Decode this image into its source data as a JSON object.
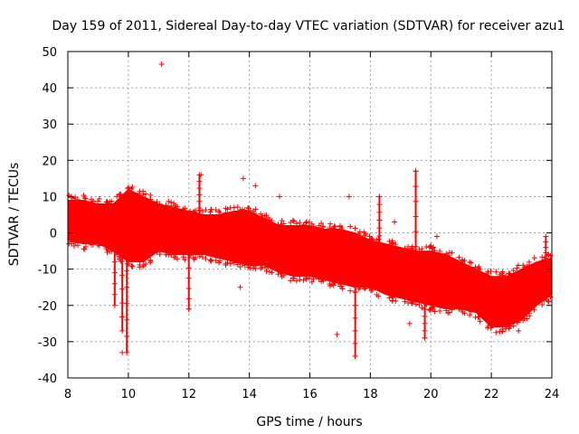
{
  "chart_data": {
    "type": "scatter",
    "title": "Day 159 of 2011, Sidereal Day-to-day VTEC variation (SDTVAR) for receiver azu1",
    "xlabel": "GPS time / hours",
    "ylabel": "SDTVAR / TECUs",
    "xlim": [
      8,
      24
    ],
    "ylim": [
      -40,
      50
    ],
    "xticks": [
      8,
      10,
      12,
      14,
      16,
      18,
      20,
      22,
      24
    ],
    "yticks": [
      -40,
      -30,
      -20,
      -10,
      0,
      10,
      20,
      30,
      40,
      50
    ],
    "grid": true,
    "marker": "+",
    "series_color": "#ff0000",
    "series": [
      {
        "name": "SDTVAR",
        "x": [
          8.0,
          8.5,
          9.0,
          9.5,
          10.0,
          10.5,
          11.0,
          11.5,
          12.0,
          12.5,
          13.0,
          13.5,
          14.0,
          14.5,
          15.0,
          15.5,
          16.0,
          16.5,
          17.0,
          17.5,
          18.0,
          18.5,
          19.0,
          19.5,
          20.0,
          20.5,
          21.0,
          21.5,
          22.0,
          22.5,
          23.0,
          23.5,
          24.0
        ],
        "upper": [
          9,
          9,
          8,
          8,
          12,
          10,
          8,
          7,
          6,
          5,
          5,
          6,
          6,
          4,
          2,
          2,
          2,
          1,
          1,
          0,
          -2,
          -3,
          -4,
          -5,
          -5,
          -6,
          -8,
          -10,
          -12,
          -12,
          -10,
          -8,
          -7
        ],
        "lower": [
          -2,
          -3,
          -3,
          -5,
          -8,
          -8,
          -5,
          -6,
          -6,
          -6,
          -7,
          -8,
          -9,
          -9,
          -11,
          -12,
          -12,
          -13,
          -14,
          -15,
          -15,
          -17,
          -18,
          -19,
          -20,
          -21,
          -21,
          -22,
          -26,
          -26,
          -24,
          -20,
          -17
        ],
        "outliers": [
          {
            "x": 11.1,
            "y": 46.5
          },
          {
            "x": 12.4,
            "y": 16
          },
          {
            "x": 13.8,
            "y": 15
          },
          {
            "x": 14.2,
            "y": 13
          },
          {
            "x": 15.0,
            "y": 10
          },
          {
            "x": 16.9,
            "y": -28
          },
          {
            "x": 17.5,
            "y": -34
          },
          {
            "x": 17.3,
            "y": 10
          },
          {
            "x": 18.3,
            "y": 10
          },
          {
            "x": 18.8,
            "y": 3
          },
          {
            "x": 19.3,
            "y": -25
          },
          {
            "x": 19.5,
            "y": 17
          },
          {
            "x": 19.8,
            "y": -29
          },
          {
            "x": 20.2,
            "y": -1
          },
          {
            "x": 9.8,
            "y": -33
          },
          {
            "x": 12.0,
            "y": -21
          },
          {
            "x": 13.7,
            "y": -15
          },
          {
            "x": 22.9,
            "y": -27
          }
        ],
        "spikes": [
          {
            "x": 9.55,
            "y_from": -2,
            "y_to": -20
          },
          {
            "x": 9.8,
            "y_from": -4,
            "y_to": -27
          },
          {
            "x": 9.95,
            "y_from": -6,
            "y_to": -33
          },
          {
            "x": 12.0,
            "y_from": -4,
            "y_to": -21
          },
          {
            "x": 12.35,
            "y_from": 5,
            "y_to": 16
          },
          {
            "x": 17.5,
            "y_from": -13,
            "y_to": -34
          },
          {
            "x": 18.3,
            "y_from": -3,
            "y_to": 10
          },
          {
            "x": 19.5,
            "y_from": -8,
            "y_to": 17
          },
          {
            "x": 19.8,
            "y_from": -17,
            "y_to": -29
          },
          {
            "x": 23.8,
            "y_from": -10,
            "y_to": -1
          }
        ]
      }
    ]
  }
}
